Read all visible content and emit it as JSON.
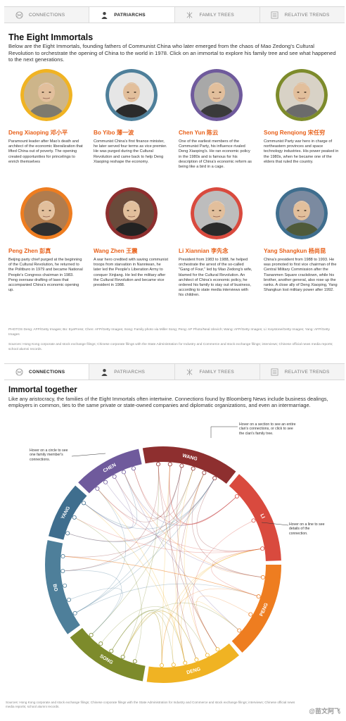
{
  "nav_top": {
    "tabs": [
      {
        "label": "CONNECTIONS",
        "icon": "circle-icon",
        "active": false
      },
      {
        "label": "PATRIARCHS",
        "icon": "person-icon",
        "active": true
      },
      {
        "label": "FAMILY TREES",
        "icon": "tree-icon",
        "active": false
      },
      {
        "label": "RELATIVE TRENDS",
        "icon": "list-icon",
        "active": false
      }
    ]
  },
  "patriarchs": {
    "title": "The Eight Immortals",
    "intro": "Below are the Eight Immortals, founding fathers of Communist China who later emerged from the chaos of Mao Zedong's Cultural Revolution to orchestrate the opening of China to the world in 1978. Click on an immortal to explore his family tree and see what happened to the next generations.",
    "people": [
      {
        "name": "Deng Xiaoping 邓小平",
        "ring": "#f0b323",
        "bio": "Paramount leader after Mao's death and architect of the economic liberalization that lifted China out of poverty. The opening created opportunities for princelings to enrich themselves"
      },
      {
        "name": "Bo Yibo 薄一波",
        "ring": "#4e7f9a",
        "bio": "Communist China's first finance minister, he later served four terms as vice premier. He was purged during the Cultural Revolution and came back to help Deng Xiaoping reshape the economy."
      },
      {
        "name": "Chen Yun 陈云",
        "ring": "#6f5a9c",
        "bio": "One of the earliest members of the Communist Party, his influence rivaled Deng Xiaoping's. He ran economic policy in the 1980s and is famous for his description of China's economic reform as being like a bird in a cage."
      },
      {
        "name": "Song Renqiong 宋任穷",
        "ring": "#7d8b2b",
        "bio": "Communist Party war hero in charge of northeastern provinces and space technology industries. His power peaked in the 1980s, when he became one of the elders that ruled the country."
      },
      {
        "name": "Peng Zhen 彭真",
        "ring": "#ee7d20",
        "bio": "Beijing party chief purged at the beginning of the Cultural Revolution, he returned to the Politburo in 1979 and became National People's Congress chairman in 1983. Peng oversaw drafting of laws that accompanied China's economic opening up."
      },
      {
        "name": "Wang Zhen 王震",
        "ring": "#8e2f2f",
        "bio": "A war hero credited with saving communist troops from starvation in Nanniwan, he later led the People's Liberation Army to conquer Xinjiang. He led the military after the Cultural Revolution and became vice president in 1988."
      },
      {
        "name": "Li Xiannian 李先念",
        "ring": "#d94a3e",
        "bio": "President from 1983 to 1988, he helped orchestrate the arrest of the so-called \"Gang of Four,\" led by Mao Zedong's wife, blamed for the Cultural Revolution. An architect of China's economic policy, he ordered his family to stay out of business, according to state media interviews with his children."
      },
      {
        "name": "Yang Shangkun 杨尚昆",
        "ring": "#3f6e8e",
        "bio": "China's president from 1988 to 1993. He was promoted to first vice chairman of the Central Military Commission after the Tiananmen Square crackdown, while his brother, another general, also rose up the ranks. A close ally of Deng Xiaoping, Yang Shangkun lost military power after 1992."
      }
    ],
    "photo_credits": "PHOTOS Deng: AFP/Getty Images; Bo: EyePress; Chen: AFP/Getty Images; Song: Family photo via Miller Song; Peng: AP Photo/Neal Ulevich; Wang: AFP/Getty Images; Li: Keystone/Getty Images; Yang: AFP/Getty Images",
    "sources": "Sources: Hong Kong corporate and stock exchange filings; Chinese corporate filings with the State Administration for Industry and Commerce and stock exchange filings; interviews; Chinese official news media reports; school alumni records."
  },
  "nav_mid": {
    "tabs": [
      {
        "label": "CONNECTIONS",
        "icon": "circle-icon",
        "active": true
      },
      {
        "label": "PATRIARCHS",
        "icon": "person-icon",
        "active": false
      },
      {
        "label": "FAMILY TREES",
        "icon": "tree-icon",
        "active": false
      },
      {
        "label": "RELATIVE TRENDS",
        "icon": "list-icon",
        "active": false
      }
    ]
  },
  "connections": {
    "title": "Immortal together",
    "intro": "Like any aristocracy, the families of the Eight Immortals often intertwine. Connections found by Bloomberg News include business dealings, employers in common, ties to the same private or state-owned companies and diplomatic organizations, and even an intermarriage.",
    "hint_circle": "Hover on a circle to see one family member's connections.",
    "hint_section": "Hover on a section to see an entire clan's connections, or click to see the clan's family tree.",
    "hint_line": "Hover on a line to see details of the connection.",
    "clans": [
      {
        "label": "WANG",
        "color": "#8e2f2f",
        "start": -10,
        "end": 38
      },
      {
        "label": "LI",
        "color": "#d94a3e",
        "start": 40,
        "end": 88
      },
      {
        "label": "PENG",
        "color": "#ee7d20",
        "start": 90,
        "end": 138
      },
      {
        "label": "DENG",
        "color": "#f0b323",
        "start": 140,
        "end": 188
      },
      {
        "label": "SONG",
        "color": "#7d8b2b",
        "start": 190,
        "end": 232
      },
      {
        "label": "BO",
        "color": "#4e7f9a",
        "start": 234,
        "end": 282
      },
      {
        "label": "YANG",
        "color": "#3f6e8e",
        "start": 284,
        "end": 312
      },
      {
        "label": "CHEN",
        "color": "#6f5a9c",
        "start": 314,
        "end": 348
      }
    ],
    "sources": "Sources: Hong Kong corporate and stock exchange filings; Chinese corporate filings with the State Administration for Industry and Commerce and stock exchange filings; interviews; Chinese official news media reports; school alumni records."
  },
  "watermark": "@苗文阿飞"
}
